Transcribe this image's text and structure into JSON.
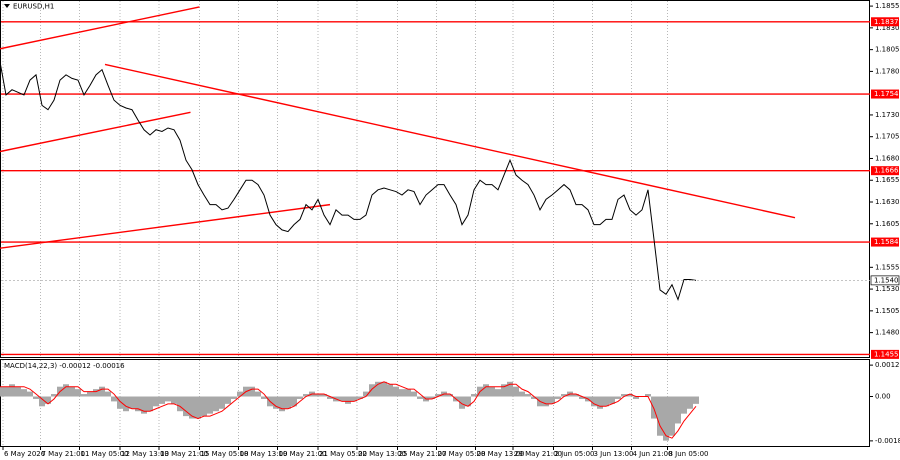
{
  "chart_data": [
    {
      "type": "line",
      "title": "EURUSD,H1",
      "x": [
        0,
        4,
        8,
        12,
        16,
        20,
        24,
        28,
        32,
        36,
        40,
        44,
        48,
        52,
        56,
        60,
        64,
        68,
        72,
        76,
        80,
        84,
        88,
        92,
        96,
        100,
        104,
        108,
        112,
        116,
        120,
        124,
        128,
        132,
        136,
        140,
        144,
        148,
        152,
        156,
        160,
        164,
        168,
        172,
        176,
        180,
        184,
        188,
        192,
        196,
        200,
        204,
        208,
        212,
        216,
        220,
        224,
        228,
        232,
        236,
        240,
        244,
        248,
        252,
        256,
        260,
        264,
        268,
        272,
        276,
        280,
        284,
        288,
        292,
        296,
        300,
        304,
        308,
        312,
        316,
        320,
        324,
        328,
        332,
        336,
        340,
        344,
        348,
        352,
        356,
        360,
        364,
        368,
        372,
        376,
        380,
        384,
        388,
        392,
        396,
        400,
        404,
        408,
        412,
        416,
        420,
        424,
        428,
        432,
        436,
        440,
        444,
        448,
        452,
        456,
        460,
        464
      ],
      "series": [
        {
          "color": "#000000",
          "values": [
            1.1791,
            1.1753,
            1.1759,
            1.1756,
            1.1753,
            1.177,
            1.1776,
            1.1741,
            1.1736,
            1.1747,
            1.177,
            1.1776,
            1.1772,
            1.177,
            1.1753,
            1.1764,
            1.1776,
            1.1782,
            1.1764,
            1.1747,
            1.1741,
            1.1738,
            1.1736,
            1.1724,
            1.1713,
            1.1707,
            1.1713,
            1.1711,
            1.1715,
            1.1713,
            1.1701,
            1.1678,
            1.1667,
            1.165,
            1.1638,
            1.1627,
            1.1627,
            1.1621,
            1.1623,
            1.1633,
            1.1644,
            1.1655,
            1.1655,
            1.165,
            1.1638,
            1.1615,
            1.1604,
            1.1598,
            1.1596,
            1.1604,
            1.161,
            1.1627,
            1.1621,
            1.1633,
            1.1615,
            1.1604,
            1.1621,
            1.1615,
            1.1615,
            1.161,
            1.161,
            1.1615,
            1.1638,
            1.1644,
            1.1646,
            1.1644,
            1.1642,
            1.1638,
            1.1644,
            1.1642,
            1.1627,
            1.1638,
            1.1644,
            1.165,
            1.165,
            1.1638,
            1.1627,
            1.1604,
            1.1615,
            1.1644,
            1.1655,
            1.165,
            1.165,
            1.1644,
            1.1661,
            1.1678,
            1.1661,
            1.1655,
            1.165,
            1.1638,
            1.1621,
            1.1633,
            1.1638,
            1.1644,
            1.165,
            1.1644,
            1.1627,
            1.1627,
            1.1621,
            1.1604,
            1.1604,
            1.161,
            1.161,
            1.1633,
            1.1638,
            1.1621,
            1.1615,
            1.1621,
            1.1644,
            1.1587,
            1.1529,
            1.1524,
            1.1535,
            1.1518,
            1.1541,
            1.1541,
            1.154
          ]
        }
      ],
      "xlim": [
        0,
        580
      ],
      "xticks": [
        {
          "value": 2,
          "label": "6 May 2026"
        },
        {
          "value": 27,
          "label": "7 May 21:00"
        },
        {
          "value": 53,
          "label": "11 May 05:00"
        },
        {
          "value": 80,
          "label": "12 May 13:00"
        },
        {
          "value": 106,
          "label": "13 May 21:00"
        },
        {
          "value": 133,
          "label": "15 May 05:00"
        },
        {
          "value": 159,
          "label": "18 May 13:00"
        },
        {
          "value": 185,
          "label": "19 May 21:00"
        },
        {
          "value": 212,
          "label": "21 May 05:00"
        },
        {
          "value": 238,
          "label": "22 May 13:00"
        },
        {
          "value": 265,
          "label": "25 May 21:00"
        },
        {
          "value": 291,
          "label": "27 May 05:00"
        },
        {
          "value": 317,
          "label": "28 May 13:00"
        },
        {
          "value": 342,
          "label": "29 May 21:00"
        },
        {
          "value": 369,
          "label": "2 Jun 05:00"
        },
        {
          "value": 395,
          "label": "3 Jun 13:00"
        },
        {
          "value": 421,
          "label": "4 Jun 21:00"
        },
        {
          "value": 445,
          "label": "8 Jun 05:00"
        }
      ],
      "ylim": [
        1.1452,
        1.1862
      ],
      "yticks": [
        {
          "value": 1.1855,
          "label": "1.1855"
        },
        {
          "value": 1.183,
          "label": "1.1830"
        },
        {
          "value": 1.1805,
          "label": "1.1805"
        },
        {
          "value": 1.178,
          "label": "1.1780"
        },
        {
          "value": 1.173,
          "label": "1.1730"
        },
        {
          "value": 1.1705,
          "label": "1.1705"
        },
        {
          "value": 1.168,
          "label": "1.1680"
        },
        {
          "value": 1.1655,
          "label": "1.1655"
        },
        {
          "value": 1.163,
          "label": "1.1630"
        },
        {
          "value": 1.1605,
          "label": "1.1605"
        },
        {
          "value": 1.1555,
          "label": "1.1555"
        },
        {
          "value": 1.153,
          "label": "1.1530"
        },
        {
          "value": 1.1505,
          "label": "1.1505"
        },
        {
          "value": 1.148,
          "label": "1.1480"
        }
      ],
      "grid": true,
      "levels": [
        1.1837,
        1.1754,
        1.1666,
        1.1584,
        1.1455
      ],
      "level_color": "#ff0000",
      "trendlines": [
        {
          "x": [
            0,
            133
          ],
          "y": [
            1.1806,
            1.1854
          ]
        },
        {
          "x": [
            70,
            530
          ],
          "y": [
            1.1788,
            1.1612
          ]
        },
        {
          "x": [
            0,
            127
          ],
          "y": [
            1.1688,
            1.1733
          ]
        },
        {
          "x": [
            0,
            220
          ],
          "y": [
            1.1577,
            1.1627
          ]
        }
      ],
      "last_price": {
        "value": 1.154,
        "label": "1.1540"
      }
    },
    {
      "type": "bar",
      "title": "MACD(14,22,3) -0.00012 -0.00016",
      "ylim": [
        -0.00206,
        0.00153
      ],
      "yticks": [
        {
          "value": 0.00128,
          "label": "0.00128"
        },
        {
          "value": 0,
          "label": "0.00"
        },
        {
          "value": -0.00181,
          "label": "-0.00181"
        }
      ],
      "series": [
        {
          "type": "bar",
          "color": "#a8a8a8",
          "values": [
            0.0004,
            0.0004,
            0.0005,
            0.0004,
            0.0003,
            0.0002,
            -0.0001,
            -0.0004,
            -0.0003,
            0.0001,
            0.0004,
            0.0005,
            0.0004,
            0.0003,
            0.0001,
            0.0002,
            0.0003,
            0.0004,
            0.0002,
            -0.0002,
            -0.0005,
            -0.0006,
            -0.0005,
            -0.0006,
            -0.0007,
            -0.0006,
            -0.0004,
            -0.0003,
            -0.0002,
            -0.0003,
            -0.0006,
            -0.0008,
            -0.0009,
            -0.0009,
            -0.0008,
            -0.0007,
            -0.0006,
            -0.0005,
            -0.0003,
            -0.0001,
            0.0002,
            0.0004,
            0.0004,
            0.0002,
            -0.0001,
            -0.0004,
            -0.0005,
            -0.0006,
            -0.0005,
            -0.0004,
            -0.0001,
            0.0001,
            0.0002,
            0.0001,
            0.0001,
            -0.0001,
            -0.0002,
            -0.0002,
            -0.0003,
            -0.0002,
            -0.0001,
            0.0002,
            0.0005,
            0.0006,
            0.0006,
            0.0005,
            0.0004,
            0.0003,
            0.0003,
            0.0002,
            -0.0001,
            -0.0002,
            -0.0001,
            0.0001,
            0.0002,
            0.0001,
            -0.0002,
            -0.0005,
            -0.0004,
            0.0001,
            0.0004,
            0.0005,
            0.0004,
            0.0003,
            0.0005,
            0.0006,
            0.0004,
            0.0002,
            0.0001,
            -0.0001,
            -0.0004,
            -0.0004,
            -0.0003,
            -0.0001,
            0.0001,
            0.0002,
            0.0001,
            -0.0001,
            -0.0002,
            -0.0004,
            -0.0005,
            -0.0004,
            -0.0003,
            -0.0001,
            0.0001,
            0.0001,
            -0.0001,
            0,
            0.0001,
            -0.0009,
            -0.0016,
            -0.0018,
            -0.0016,
            -0.0011,
            -0.0007,
            -0.0005,
            -0.0003
          ]
        },
        {
          "type": "line",
          "color": "#ff0000",
          "values": [
            0.0004,
            0.0004,
            0.0004,
            0.0004,
            0.0004,
            0.0003,
            0.0001,
            -0.0001,
            -0.0003,
            -0.0001,
            0.0002,
            0.0004,
            0.0004,
            0.0004,
            0.0002,
            0.0002,
            0.0002,
            0.0003,
            0.0003,
            0.0001,
            -0.0002,
            -0.0004,
            -0.0005,
            -0.0005,
            -0.0006,
            -0.0006,
            -0.0005,
            -0.0004,
            -0.0003,
            -0.0003,
            -0.0004,
            -0.0006,
            -0.0008,
            -0.0009,
            -0.0008,
            -0.0008,
            -0.0007,
            -0.0006,
            -0.0004,
            -0.0002,
            0,
            0.0002,
            0.0003,
            0.0003,
            0.0001,
            -0.0002,
            -0.0004,
            -0.0005,
            -0.0005,
            -0.0004,
            -0.0002,
            0,
            0.0001,
            0.0001,
            0.0001,
            0,
            -0.0001,
            -0.0002,
            -0.0002,
            -0.0002,
            -0.0001,
            0,
            0.0003,
            0.0005,
            0.0006,
            0.0005,
            0.0005,
            0.0004,
            0.0003,
            0.0003,
            0.0001,
            -0.0001,
            -0.0001,
            0,
            0.0001,
            0.0001,
            -0.0001,
            -0.0003,
            -0.0004,
            -0.0002,
            0.0002,
            0.0004,
            0.0004,
            0.0004,
            0.0004,
            0.0005,
            0.0005,
            0.0003,
            0.0002,
            0,
            -0.0002,
            -0.0003,
            -0.0003,
            -0.0002,
            0,
            0.0001,
            0.0001,
            0,
            -0.0001,
            -0.0003,
            -0.0004,
            -0.0004,
            -0.0003,
            -0.0002,
            0,
            0.0001,
            0,
            0,
            0,
            -0.0005,
            -0.0012,
            -0.0016,
            -0.0017,
            -0.0014,
            -0.001,
            -0.0007,
            -0.0004
          ]
        }
      ]
    }
  ]
}
